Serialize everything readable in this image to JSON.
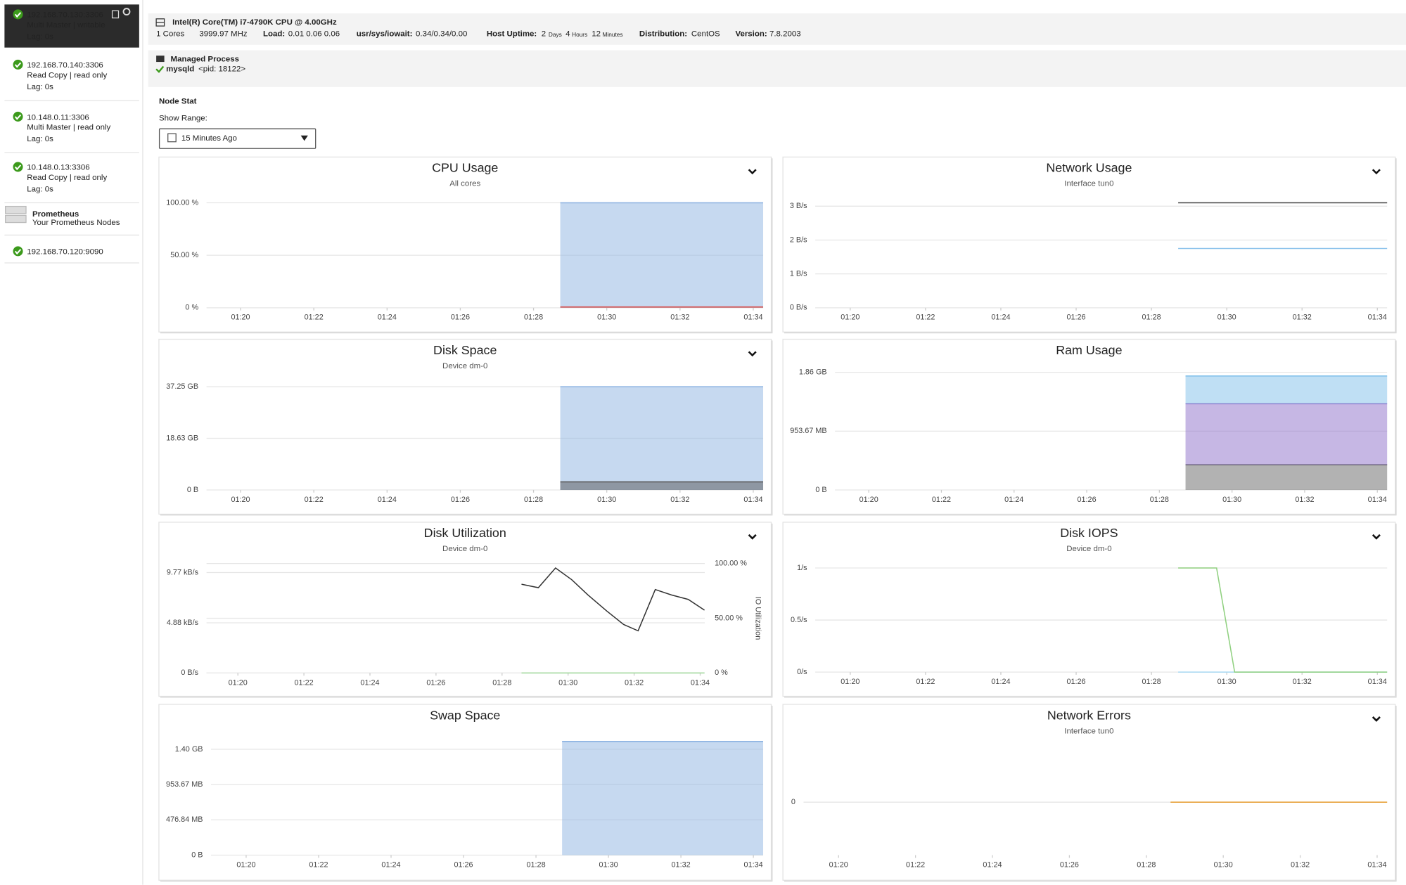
{
  "sidebar": {
    "nodes": [
      {
        "address": "192.168.70.130:3306",
        "role": "Multi Master | writable",
        "lag": "Lag: 0s"
      },
      {
        "address": "192.168.70.140:3306",
        "role": "Read Copy | read only",
        "lag": "Lag: 0s"
      },
      {
        "address": "10.148.0.11:3306",
        "role": "Multi Master | read only",
        "lag": "Lag: 0s"
      },
      {
        "address": "10.148.0.13:3306",
        "role": "Read Copy | read only",
        "lag": "Lag: 0s"
      }
    ],
    "prometheus": {
      "title": "Prometheus",
      "subtitle": "Your Prometheus Nodes",
      "nodes": [
        "192.168.70.120:9090"
      ]
    }
  },
  "host": {
    "cpu": "Intel(R) Core(TM) i7-4790K CPU @ 4.00GHz",
    "cores": "1 Cores",
    "mhz": "3999.97 MHz",
    "load_label": "Load:",
    "load": "0.01 0.06 0.06",
    "usage_label": "usr/sys/iowait:",
    "usage": "0.34/0.34/0.00",
    "uptime_label": "Host Uptime:",
    "uptime_days": "2",
    "days": "Days",
    "uptime_hours": "4",
    "hours": "Hours",
    "uptime_minutes": "12",
    "minutes": "Minutes",
    "distribution_label": "Distribution:",
    "distribution": "CentOS",
    "version_label": "Version:",
    "version": "7.8.2003"
  },
  "process": {
    "title": "Managed Process",
    "name": "mysqld",
    "pid": "<pid: 18122>"
  },
  "node_stat": {
    "title": "Node Stat",
    "range_label": "Show Range:",
    "range": "15 Minutes Ago"
  },
  "chart_data": [
    {
      "type": "area",
      "title": "CPU Usage",
      "subtitle": "All cores",
      "xlim": [
        79.07,
        94.27
      ],
      "xticks": [
        {
          "value": 80,
          "label": "01:20"
        },
        {
          "value": 82,
          "label": "01:22"
        },
        {
          "value": 84,
          "label": "01:24"
        },
        {
          "value": 86,
          "label": "01:26"
        },
        {
          "value": 88,
          "label": "01:28"
        },
        {
          "value": 90,
          "label": "01:30"
        },
        {
          "value": 92,
          "label": "01:32"
        },
        {
          "value": 94,
          "label": "01:34"
        }
      ],
      "ylim": [
        0,
        100
      ],
      "yticks": [
        {
          "value": 100,
          "label": "100.00 %"
        },
        {
          "value": 50,
          "label": "50.00 %"
        },
        {
          "value": 0,
          "label": "0 %"
        }
      ],
      "series": [
        {
          "color": "#8db3e2",
          "x": [
            88.73,
            94.27
          ],
          "values": [
            100,
            100
          ]
        },
        {
          "color": "#d9534f",
          "x": [
            88.73,
            94.27
          ],
          "values": [
            0.8,
            0.8
          ]
        }
      ]
    },
    {
      "type": "line",
      "title": "Network Usage",
      "subtitle": "Interface tun0",
      "xlim": [
        79.07,
        94.26
      ],
      "xticks": [
        {
          "value": 80,
          "label": "01:20"
        },
        {
          "value": 82,
          "label": "01:22"
        },
        {
          "value": 84,
          "label": "01:24"
        },
        {
          "value": 86,
          "label": "01:26"
        },
        {
          "value": 88,
          "label": "01:28"
        },
        {
          "value": 90,
          "label": "01:30"
        },
        {
          "value": 92,
          "label": "01:32"
        },
        {
          "value": 94,
          "label": "01:34"
        }
      ],
      "ylim": [
        0,
        3.1
      ],
      "yticks": [
        {
          "value": 3,
          "label": "3 B/s"
        },
        {
          "value": 2,
          "label": "2 B/s"
        },
        {
          "value": 1,
          "label": "1 B/s"
        },
        {
          "value": 0,
          "label": "0 B/s"
        }
      ],
      "series": [
        {
          "color": "#444444",
          "x": [
            88.71,
            94.26
          ],
          "values": [
            3.1,
            3.1
          ]
        },
        {
          "color": "#8ec3ec",
          "x": [
            88.71,
            94.26
          ],
          "values": [
            1.75,
            1.75
          ]
        }
      ]
    },
    {
      "type": "area",
      "title": "Disk Space",
      "subtitle": "Device dm-0",
      "xlim": [
        79.07,
        94.27
      ],
      "xticks": [
        {
          "value": 80,
          "label": "01:20"
        },
        {
          "value": 82,
          "label": "01:22"
        },
        {
          "value": 84,
          "label": "01:24"
        },
        {
          "value": 86,
          "label": "01:26"
        },
        {
          "value": 88,
          "label": "01:28"
        },
        {
          "value": 90,
          "label": "01:30"
        },
        {
          "value": 92,
          "label": "01:32"
        },
        {
          "value": 94,
          "label": "01:34"
        }
      ],
      "ylim": [
        0,
        37.25
      ],
      "yticks": [
        {
          "value": 37.25,
          "label": "37.25 GB"
        },
        {
          "value": 18.63,
          "label": "18.63 GB"
        },
        {
          "value": 0,
          "label": "0 B"
        }
      ],
      "series": [
        {
          "color": "#8db3e2",
          "x": [
            88.73,
            94.27
          ],
          "values": [
            37.25,
            37.25
          ]
        },
        {
          "color": "#555555",
          "x": [
            88.73,
            94.27
          ],
          "values": [
            2.9,
            2.9
          ]
        }
      ]
    },
    {
      "type": "stacked_area",
      "title": "Ram Usage",
      "xlim": [
        79.07,
        94.27
      ],
      "xticks": [
        {
          "value": 80,
          "label": "01:20"
        },
        {
          "value": 82,
          "label": "01:22"
        },
        {
          "value": 84,
          "label": "01:24"
        },
        {
          "value": 86,
          "label": "01:26"
        },
        {
          "value": 88,
          "label": "01:28"
        },
        {
          "value": 90,
          "label": "01:30"
        },
        {
          "value": 92,
          "label": "01:32"
        },
        {
          "value": 94,
          "label": "01:34"
        }
      ],
      "ylim": [
        0,
        1907.35
      ],
      "yticks": [
        {
          "value": 1907.35,
          "label": "1.86 GB"
        },
        {
          "value": 953.67,
          "label": "953.67 MB"
        },
        {
          "value": 0,
          "label": "0 B"
        }
      ],
      "series": [
        {
          "color": "#666666",
          "x": [
            88.72,
            94.27
          ],
          "values": [
            408,
            408
          ]
        },
        {
          "color": "#8e6fc9",
          "x": [
            88.72,
            94.27
          ],
          "values": [
            990,
            990
          ]
        },
        {
          "color": "#7fbfea",
          "x": [
            88.72,
            94.27
          ],
          "values": [
            451,
            451
          ]
        }
      ]
    },
    {
      "type": "line",
      "title": "Disk Utilization",
      "subtitle": "Device dm-0",
      "xlim": [
        79.05,
        94.14
      ],
      "xticks": [
        {
          "value": 80,
          "label": "01:20"
        },
        {
          "value": 82,
          "label": "01:22"
        },
        {
          "value": 84,
          "label": "01:24"
        },
        {
          "value": 86,
          "label": "01:26"
        },
        {
          "value": 88,
          "label": "01:28"
        },
        {
          "value": 90,
          "label": "01:30"
        },
        {
          "value": 92,
          "label": "01:32"
        },
        {
          "value": 94,
          "label": "01:34"
        }
      ],
      "ylim": [
        0,
        10.65
      ],
      "yticks": [
        {
          "value": 9.77,
          "label": "9.77 kB/s"
        },
        {
          "value": 4.88,
          "label": "4.88 kB/s"
        },
        {
          "value": 0,
          "label": "0 B/s"
        }
      ],
      "y2lim": [
        0,
        100
      ],
      "y2ticks": [
        {
          "value": 100,
          "label": "100.00 %"
        },
        {
          "value": 50,
          "label": "50.00 %"
        },
        {
          "value": 0,
          "label": "0 %"
        }
      ],
      "y2label": "IO Utilization",
      "series": [
        {
          "color": "#333333",
          "axis": "y2",
          "x": [
            88.59,
            89.1,
            89.62,
            90.11,
            90.6,
            91.17,
            91.68,
            92.12,
            92.64,
            93.13,
            93.64,
            94.13
          ],
          "values": [
            81.1,
            77.9,
            95.9,
            85.2,
            71.3,
            56.6,
            44.3,
            38.5,
            76.2,
            71.3,
            67.2,
            57.4
          ]
        },
        {
          "color": "#9fd89a",
          "x": [
            88.59,
            94.13
          ],
          "values": [
            0,
            0
          ]
        }
      ]
    },
    {
      "type": "line",
      "title": "Disk IOPS",
      "subtitle": "Device dm-0",
      "xlim": [
        79.07,
        94.26
      ],
      "xticks": [
        {
          "value": 80,
          "label": "01:20"
        },
        {
          "value": 82,
          "label": "01:22"
        },
        {
          "value": 84,
          "label": "01:24"
        },
        {
          "value": 86,
          "label": "01:26"
        },
        {
          "value": 88,
          "label": "01:28"
        },
        {
          "value": 90,
          "label": "01:30"
        },
        {
          "value": 92,
          "label": "01:32"
        },
        {
          "value": 94,
          "label": "01:34"
        }
      ],
      "ylim": [
        0,
        1
      ],
      "yticks": [
        {
          "value": 1,
          "label": "1/s"
        },
        {
          "value": 0.5,
          "label": "0.5/s"
        },
        {
          "value": 0,
          "label": "0/s"
        }
      ],
      "series": [
        {
          "color": "#a8d8f2",
          "x": [
            88.71,
            94.26
          ],
          "values": [
            0,
            0
          ]
        },
        {
          "color": "#8fd07f",
          "x": [
            88.71,
            89.73,
            90.21,
            94.26
          ],
          "values": [
            1,
            1,
            0,
            0
          ]
        }
      ]
    },
    {
      "type": "area",
      "title": "Swap Space",
      "xlim": [
        79.03,
        94.27
      ],
      "xticks": [
        {
          "value": 80,
          "label": "01:20"
        },
        {
          "value": 82,
          "label": "01:22"
        },
        {
          "value": 84,
          "label": "01:24"
        },
        {
          "value": 86,
          "label": "01:26"
        },
        {
          "value": 88,
          "label": "01:28"
        },
        {
          "value": 90,
          "label": "01:30"
        },
        {
          "value": 92,
          "label": "01:32"
        },
        {
          "value": 94,
          "label": "01:34"
        }
      ],
      "ylim": [
        0,
        1540
      ],
      "yticks": [
        {
          "value": 1430.51,
          "label": "1.40 GB"
        },
        {
          "value": 953.67,
          "label": "953.67 MB"
        },
        {
          "value": 476.84,
          "label": "476.84 MB"
        },
        {
          "value": 0,
          "label": "0 B"
        }
      ],
      "series": [
        {
          "color": "#8db3e2",
          "x": [
            88.72,
            94.27
          ],
          "values": [
            1536,
            1536
          ]
        }
      ]
    },
    {
      "type": "line",
      "title": "Network Errors",
      "subtitle": "Interface tun0",
      "xlim": [
        79.09,
        94.26
      ],
      "xticks": [
        {
          "value": 80,
          "label": "01:20"
        },
        {
          "value": 82,
          "label": "01:22"
        },
        {
          "value": 84,
          "label": "01:24"
        },
        {
          "value": 86,
          "label": "01:26"
        },
        {
          "value": 88,
          "label": "01:28"
        },
        {
          "value": 90,
          "label": "01:30"
        },
        {
          "value": 92,
          "label": "01:32"
        },
        {
          "value": 94,
          "label": "01:34"
        }
      ],
      "ylim": [
        -1,
        1
      ],
      "yticks": [
        0
      ],
      "series": [
        {
          "color": "#e8a33d",
          "x": [
            88.63,
            94.26
          ],
          "values": [
            0,
            0
          ]
        }
      ]
    }
  ]
}
